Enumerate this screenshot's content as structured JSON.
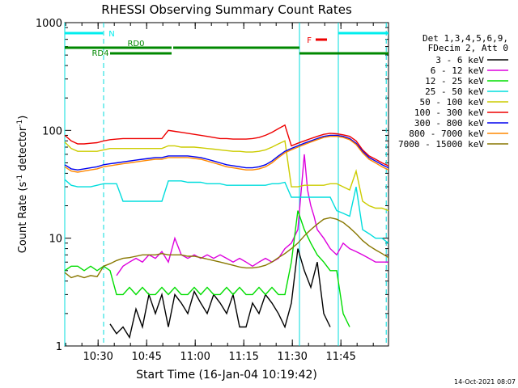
{
  "chart_data": {
    "type": "line",
    "title": "RHESSI Observing Summary Count Rates",
    "xlabel": "Start Time (16-Jan-04 10:19:42)",
    "ylabel": "Count Rate (s",
    "ylabel_sup": "-1",
    "ylabel_tail": " detector",
    "ylabel_tail_sup": "-1",
    "ylabel_close": ")",
    "y_scale": "log",
    "ylim": [
      1,
      1000
    ],
    "xlim_minutes_since_start": [
      0,
      100
    ],
    "x_ticks": [
      {
        "label": "10:30",
        "minute": 10.3
      },
      {
        "label": "10:45",
        "minute": 25.3
      },
      {
        "label": "11:00",
        "minute": 40.3
      },
      {
        "label": "11:15",
        "minute": 55.3
      },
      {
        "label": "11:30",
        "minute": 70.3
      },
      {
        "label": "11:45",
        "minute": 85.3
      }
    ],
    "y_ticks": [
      {
        "label": "1",
        "value": 1
      },
      {
        "label": "10",
        "value": 10
      },
      {
        "label": "100",
        "value": 100
      },
      {
        "label": "1000",
        "value": 1000
      }
    ],
    "legend_header": [
      "Det 1,3,4,5,6,9,",
      "FDecim 2, Att 0"
    ],
    "legend_position": "right",
    "series": [
      {
        "name": "3 - 6 keV",
        "color": "#000000",
        "x": [
          0,
          5,
          10,
          11,
          12,
          14,
          16,
          18,
          20,
          22,
          24,
          26,
          28,
          30,
          32,
          34,
          36,
          38,
          40,
          42,
          44,
          46,
          48,
          50,
          52,
          54,
          56,
          58,
          60,
          62,
          64,
          66,
          68,
          70,
          72,
          74,
          76,
          78,
          80,
          82,
          84,
          86,
          88,
          90,
          92,
          94,
          96,
          98,
          100
        ],
        "y": [
          null,
          null,
          null,
          null,
          null,
          1.6,
          1.3,
          1.5,
          1.2,
          2.2,
          1.5,
          3.0,
          2.0,
          3.0,
          1.5,
          3.0,
          2.5,
          2.0,
          3.2,
          2.5,
          2.0,
          3.0,
          2.5,
          2.0,
          3.0,
          1.5,
          1.5,
          2.5,
          2.0,
          3.0,
          2.5,
          2.0,
          1.5,
          2.5,
          8.0,
          5.0,
          3.5,
          6.0,
          2.0,
          1.5,
          null,
          null,
          null,
          null,
          null,
          null,
          null,
          null,
          null
        ]
      },
      {
        "name": "6 - 12 keV",
        "color": "#dd00dd",
        "x": [
          0,
          2,
          4,
          6,
          8,
          10,
          12,
          14,
          16,
          18,
          20,
          22,
          24,
          26,
          28,
          30,
          32,
          34,
          36,
          38,
          40,
          42,
          44,
          46,
          48,
          50,
          52,
          54,
          56,
          58,
          60,
          62,
          64,
          66,
          68,
          70,
          72,
          74,
          75,
          76,
          77,
          78,
          80,
          82,
          84,
          86,
          88,
          90,
          92,
          94,
          96,
          98,
          100
        ],
        "y": [
          null,
          null,
          null,
          null,
          null,
          null,
          null,
          null,
          4.5,
          5.5,
          6.0,
          6.5,
          6.0,
          7.0,
          6.5,
          7.5,
          6.0,
          10.0,
          7.0,
          6.5,
          7.0,
          6.5,
          7.0,
          6.5,
          7.0,
          6.5,
          6.0,
          6.5,
          6.0,
          5.5,
          6.0,
          6.5,
          6.0,
          6.5,
          8.0,
          9.0,
          12.0,
          60.0,
          28.0,
          20.0,
          16.0,
          12.0,
          10.0,
          8.0,
          7.0,
          9.0,
          8.0,
          7.5,
          7.0,
          6.5,
          6.0,
          6.0,
          6.0
        ]
      },
      {
        "name": "12 - 25 keV",
        "color": "#00dd00",
        "x": [
          0,
          2,
          4,
          6,
          8,
          10,
          12,
          14,
          16,
          18,
          20,
          22,
          24,
          26,
          28,
          30,
          32,
          34,
          36,
          38,
          40,
          42,
          44,
          46,
          48,
          50,
          52,
          54,
          56,
          58,
          60,
          62,
          64,
          66,
          68,
          70,
          72,
          74,
          76,
          78,
          80,
          82,
          84,
          86,
          88,
          90,
          92,
          94,
          96,
          98,
          100
        ],
        "y": [
          5.0,
          5.5,
          5.5,
          5.0,
          5.5,
          5.0,
          5.5,
          5.0,
          3.0,
          3.0,
          3.5,
          3.0,
          3.5,
          3.0,
          3.0,
          3.5,
          3.0,
          3.5,
          3.0,
          3.0,
          3.5,
          3.0,
          3.5,
          3.0,
          3.0,
          3.5,
          3.0,
          3.5,
          3.0,
          3.0,
          3.5,
          3.0,
          3.5,
          3.0,
          3.0,
          6.0,
          18.0,
          12.0,
          9.0,
          7.0,
          6.0,
          5.0,
          5.0,
          2.0,
          1.5,
          null,
          null,
          null,
          null,
          null,
          null
        ]
      },
      {
        "name": "25 - 50 keV",
        "color": "#00dddd",
        "x": [
          0,
          2,
          4,
          6,
          8,
          10,
          12,
          14,
          16,
          18,
          20,
          22,
          24,
          26,
          28,
          30,
          32,
          34,
          36,
          38,
          40,
          42,
          44,
          46,
          48,
          50,
          52,
          54,
          56,
          58,
          60,
          62,
          64,
          66,
          68,
          70,
          72,
          74,
          76,
          78,
          80,
          82,
          84,
          86,
          88,
          90,
          92,
          94,
          96,
          98,
          100
        ],
        "y": [
          35,
          31,
          30,
          30,
          30,
          31,
          32,
          32,
          32,
          22,
          22,
          22,
          22,
          22,
          22,
          22,
          34,
          34,
          34,
          33,
          33,
          33,
          32,
          32,
          32,
          31,
          31,
          31,
          31,
          31,
          31,
          31,
          32,
          32,
          33,
          24,
          24,
          24,
          24,
          24,
          24,
          24,
          18,
          17,
          16,
          30,
          12,
          11,
          10,
          10,
          9
        ]
      },
      {
        "name": "50 - 100 keV",
        "color": "#cccc00",
        "x": [
          0,
          2,
          4,
          6,
          8,
          10,
          12,
          14,
          16,
          18,
          20,
          22,
          24,
          26,
          28,
          30,
          32,
          34,
          36,
          38,
          40,
          42,
          44,
          46,
          48,
          50,
          52,
          54,
          56,
          58,
          60,
          62,
          64,
          66,
          68,
          70,
          72,
          74,
          76,
          78,
          80,
          82,
          84,
          86,
          88,
          90,
          92,
          94,
          96,
          98,
          100
        ],
        "y": [
          78,
          68,
          64,
          64,
          64,
          64,
          66,
          68,
          68,
          68,
          68,
          68,
          68,
          68,
          68,
          68,
          72,
          72,
          70,
          70,
          70,
          69,
          68,
          67,
          66,
          65,
          64,
          64,
          63,
          63,
          64,
          66,
          70,
          75,
          80,
          30,
          30,
          31,
          31,
          31,
          31,
          32,
          32,
          30,
          28,
          42,
          22,
          20,
          19,
          19,
          18
        ]
      },
      {
        "name": "100 - 300 keV",
        "color": "#ee0000",
        "x": [
          0,
          2,
          4,
          6,
          8,
          10,
          12,
          14,
          16,
          18,
          20,
          22,
          24,
          26,
          28,
          30,
          32,
          34,
          36,
          38,
          40,
          42,
          44,
          46,
          48,
          50,
          52,
          54,
          56,
          58,
          60,
          62,
          64,
          66,
          68,
          70,
          72,
          74,
          76,
          78,
          80,
          82,
          84,
          86,
          88,
          90,
          92,
          94,
          96,
          98,
          100
        ],
        "y": [
          90,
          80,
          75,
          75,
          76,
          77,
          80,
          82,
          83,
          84,
          84,
          84,
          84,
          84,
          84,
          84,
          100,
          98,
          96,
          94,
          92,
          90,
          88,
          86,
          84,
          84,
          83,
          83,
          83,
          84,
          86,
          90,
          96,
          104,
          112,
          72,
          76,
          80,
          84,
          88,
          92,
          94,
          93,
          91,
          88,
          80,
          66,
          58,
          54,
          50,
          47
        ]
      },
      {
        "name": "300 - 800 keV",
        "color": "#0000ee",
        "x": [
          0,
          2,
          4,
          6,
          8,
          10,
          12,
          14,
          16,
          18,
          20,
          22,
          24,
          26,
          28,
          30,
          32,
          34,
          36,
          38,
          40,
          42,
          44,
          46,
          48,
          50,
          52,
          54,
          56,
          58,
          60,
          62,
          64,
          66,
          68,
          70,
          72,
          74,
          76,
          78,
          80,
          82,
          84,
          86,
          88,
          90,
          92,
          94,
          96,
          98,
          100
        ],
        "y": [
          48,
          44,
          43,
          44,
          45,
          46,
          48,
          49,
          50,
          51,
          52,
          53,
          54,
          55,
          56,
          56,
          58,
          58,
          58,
          58,
          57,
          56,
          54,
          52,
          50,
          48,
          47,
          46,
          45,
          45,
          46,
          48,
          52,
          58,
          64,
          68,
          72,
          76,
          80,
          84,
          88,
          90,
          90,
          88,
          84,
          76,
          64,
          56,
          52,
          48,
          45
        ]
      },
      {
        "name": "800 - 7000 keV",
        "color": "#ff8800",
        "x": [
          0,
          2,
          4,
          6,
          8,
          10,
          12,
          14,
          16,
          18,
          20,
          22,
          24,
          26,
          28,
          30,
          32,
          34,
          36,
          38,
          40,
          42,
          44,
          46,
          48,
          50,
          52,
          54,
          56,
          58,
          60,
          62,
          64,
          66,
          68,
          70,
          72,
          74,
          76,
          78,
          80,
          82,
          84,
          86,
          88,
          90,
          92,
          94,
          96,
          98,
          100
        ],
        "y": [
          46,
          42,
          41,
          42,
          43,
          44,
          46,
          47,
          48,
          49,
          50,
          51,
          52,
          53,
          54,
          54,
          56,
          56,
          56,
          56,
          55,
          54,
          52,
          50,
          48,
          46,
          45,
          44,
          43,
          43,
          44,
          46,
          50,
          56,
          62,
          66,
          70,
          74,
          78,
          82,
          86,
          88,
          88,
          86,
          82,
          74,
          62,
          54,
          50,
          46,
          43
        ]
      },
      {
        "name": "7000 - 15000 keV",
        "color": "#887700",
        "x": [
          0,
          2,
          4,
          6,
          8,
          10,
          12,
          14,
          16,
          18,
          20,
          22,
          24,
          26,
          28,
          30,
          32,
          34,
          36,
          38,
          40,
          42,
          44,
          46,
          48,
          50,
          52,
          54,
          56,
          58,
          60,
          62,
          64,
          66,
          68,
          70,
          72,
          74,
          76,
          78,
          80,
          82,
          84,
          86,
          88,
          90,
          92,
          94,
          96,
          98,
          100
        ],
        "y": [
          4.8,
          4.3,
          4.5,
          4.3,
          4.5,
          4.4,
          5.5,
          5.8,
          6.2,
          6.5,
          6.6,
          6.8,
          7.0,
          7.0,
          7.0,
          7.2,
          7.0,
          7.0,
          7.0,
          6.8,
          6.8,
          6.6,
          6.4,
          6.2,
          6.0,
          5.8,
          5.6,
          5.4,
          5.3,
          5.3,
          5.4,
          5.6,
          6.0,
          6.6,
          7.2,
          8.0,
          9.0,
          10.5,
          12.0,
          13.5,
          15.0,
          15.5,
          15.0,
          14.0,
          12.5,
          11.0,
          9.5,
          8.5,
          7.8,
          7.2,
          6.6
        ]
      }
    ],
    "bars": [
      {
        "label": "N",
        "color": "#00eeee",
        "minute_start": 0,
        "minute_end": 11.8,
        "level": 1
      },
      {
        "label": "",
        "color": "#00eeee",
        "minute_start": 84.5,
        "minute_end": 100,
        "level": 1
      },
      {
        "label": "F",
        "color": "#ee0000",
        "minute_start": 77.5,
        "minute_end": 81,
        "level": 2
      },
      {
        "label": "RD0",
        "color": "#008800",
        "minute_start": 0,
        "minute_end": 33,
        "level": 3
      },
      {
        "label": "",
        "color": "#008800",
        "minute_start": 33.5,
        "minute_end": 72.5,
        "level": 3
      },
      {
        "label": "RD4",
        "color": "#008800",
        "minute_start": 14,
        "minute_end": 33,
        "level": 4
      },
      {
        "label": "",
        "color": "#008800",
        "minute_start": 72.5,
        "minute_end": 100,
        "level": 4
      }
    ],
    "vlines": [
      {
        "minute": 0,
        "style": "solid"
      },
      {
        "minute": 12,
        "style": "dashed"
      },
      {
        "minute": 72.5,
        "style": "solid"
      },
      {
        "minute": 84.5,
        "style": "solid"
      },
      {
        "minute": 99.3,
        "style": "dashed"
      }
    ]
  },
  "footer": {
    "timestamp": "14-Oct-2021 08:07"
  }
}
